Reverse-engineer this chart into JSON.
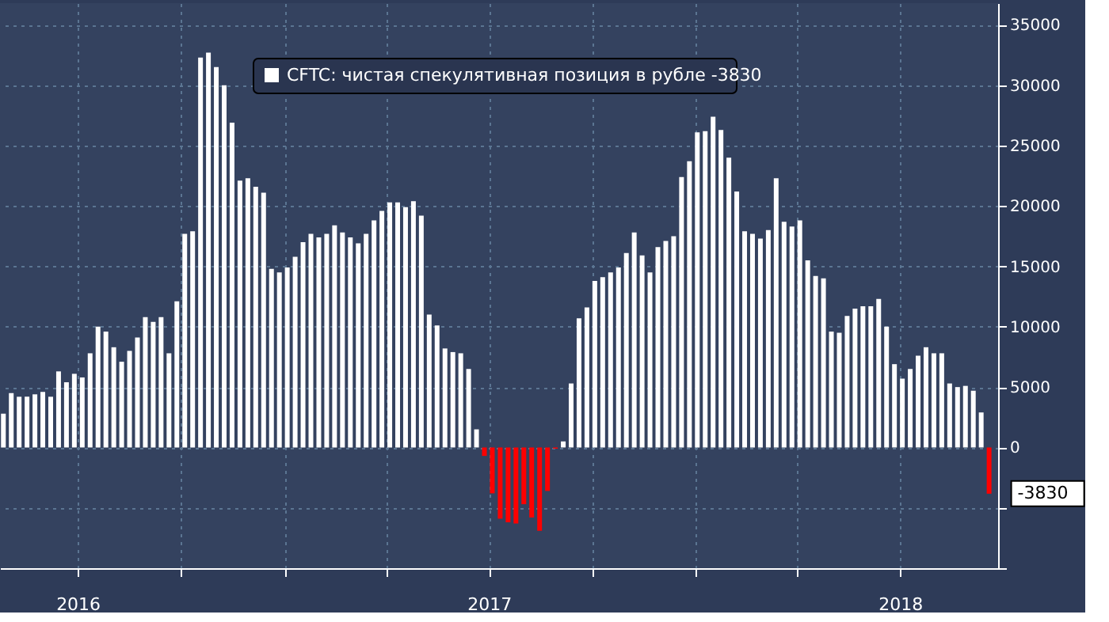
{
  "chart_data": {
    "type": "bar",
    "x": [
      "2016-04-26",
      "2016-05-03",
      "2016-05-10",
      "2016-05-17",
      "2016-05-24",
      "2016-05-31",
      "2016-06-07",
      "2016-06-14",
      "2016-06-21",
      "2016-06-28",
      "2016-07-05",
      "2016-07-12",
      "2016-07-19",
      "2016-07-26",
      "2016-08-02",
      "2016-08-09",
      "2016-08-16",
      "2016-08-23",
      "2016-08-30",
      "2016-09-06",
      "2016-09-13",
      "2016-09-20",
      "2016-09-27",
      "2016-10-04",
      "2016-10-11",
      "2016-10-18",
      "2016-10-25",
      "2016-11-01",
      "2016-11-08",
      "2016-11-15",
      "2016-11-22",
      "2016-11-29",
      "2016-12-06",
      "2016-12-13",
      "2016-12-20",
      "2016-12-27",
      "2017-01-03",
      "2017-01-10",
      "2017-01-17",
      "2017-01-24",
      "2017-01-31",
      "2017-02-07",
      "2017-02-14",
      "2017-02-21",
      "2017-02-28",
      "2017-03-07",
      "2017-03-14",
      "2017-03-21",
      "2017-03-28",
      "2017-04-04",
      "2017-04-11",
      "2017-04-18",
      "2017-04-25",
      "2017-05-02",
      "2017-05-09",
      "2017-05-16",
      "2017-05-23",
      "2017-05-30",
      "2017-06-06",
      "2017-06-13",
      "2017-06-20",
      "2017-06-27",
      "2017-07-04",
      "2017-07-11",
      "2017-07-18",
      "2017-07-25",
      "2017-08-01",
      "2017-08-08",
      "2017-08-15",
      "2017-08-22",
      "2017-08-29",
      "2017-09-05",
      "2017-09-12",
      "2017-09-19",
      "2017-09-26",
      "2017-10-03",
      "2017-10-10",
      "2017-10-17",
      "2017-10-24",
      "2017-10-31",
      "2017-11-07",
      "2017-11-14",
      "2017-11-21",
      "2017-11-28",
      "2017-12-05",
      "2017-12-12",
      "2017-12-19",
      "2017-12-26",
      "2018-01-02",
      "2018-01-09",
      "2018-01-16",
      "2018-01-23",
      "2018-01-30",
      "2018-02-06",
      "2018-02-13",
      "2018-02-20",
      "2018-02-27",
      "2018-03-06",
      "2018-03-13",
      "2018-03-20",
      "2018-03-27",
      "2018-04-03",
      "2018-04-10",
      "2018-04-17",
      "2018-04-24",
      "2018-05-01",
      "2018-05-08",
      "2018-05-15",
      "2018-05-22",
      "2018-05-29",
      "2018-06-05",
      "2018-06-12",
      "2018-06-19",
      "2018-06-26",
      "2018-07-03",
      "2018-07-10",
      "2018-07-17",
      "2018-07-24",
      "2018-07-31",
      "2018-08-07",
      "2018-08-14",
      "2018-08-21",
      "2018-08-28",
      "2018-09-04",
      "2018-09-11",
      "2018-09-18"
    ],
    "series": [
      {
        "name": "CFTC: чистая спекулятивная позиция в рубле  -3830",
        "color": "#ffffff",
        "values": [
          2800,
          4500,
          4200,
          4200,
          4400,
          4600,
          4200,
          6300,
          5400,
          6100,
          5800,
          7800,
          10000,
          9600,
          8300,
          7100,
          8000,
          9100,
          10800,
          10400,
          10800,
          7800,
          12100,
          17700,
          17900,
          32300,
          32700,
          31500,
          30000,
          26900,
          22100,
          22300,
          21600,
          21100,
          14800,
          14500,
          14900,
          15800,
          17000,
          17700,
          17400,
          17700,
          18400,
          17800,
          17400,
          16900,
          17700,
          18800,
          19600,
          20300,
          20300,
          19900,
          20400,
          19200,
          11000,
          10100,
          8200,
          7900,
          7800,
          6500,
          1500,
          -700,
          -3800,
          -5900,
          -6200,
          -6300,
          -4700,
          -5800,
          -6900,
          -3600,
          -100,
          500,
          5300,
          10700,
          11600,
          13800,
          14100,
          14500,
          14900,
          16100,
          17800,
          15900,
          14500,
          16600,
          17100,
          17500,
          22400,
          23700,
          26100,
          26200,
          27400,
          26300,
          24000,
          21200,
          17900,
          17700,
          17300,
          18000,
          22300,
          18700,
          18300,
          18800,
          15500,
          14200,
          14000,
          9600,
          9500,
          10900,
          11500,
          11700,
          11700,
          12300,
          10000,
          6900,
          5700,
          6500,
          7600,
          8300,
          7800,
          7800,
          5300,
          5000,
          5100,
          4700,
          2900,
          -3830
        ],
        "colors": [
          "#ffffff",
          "#ffffff",
          "#ffffff",
          "#ffffff",
          "#ffffff",
          "#ffffff",
          "#ffffff",
          "#ffffff",
          "#ffffff",
          "#ffffff",
          "#ffffff",
          "#ffffff",
          "#ffffff",
          "#ffffff",
          "#ffffff",
          "#ffffff",
          "#ffffff",
          "#ffffff",
          "#ffffff",
          "#ffffff",
          "#ffffff",
          "#ffffff",
          "#ffffff",
          "#ffffff",
          "#ffffff",
          "#ffffff",
          "#ffffff",
          "#ffffff",
          "#ffffff",
          "#ffffff",
          "#ffffff",
          "#ffffff",
          "#ffffff",
          "#ffffff",
          "#ffffff",
          "#ffffff",
          "#ffffff",
          "#ffffff",
          "#ffffff",
          "#ffffff",
          "#ffffff",
          "#ffffff",
          "#ffffff",
          "#ffffff",
          "#ffffff",
          "#ffffff",
          "#ffffff",
          "#ffffff",
          "#ffffff",
          "#ffffff",
          "#ffffff",
          "#ffffff",
          "#ffffff",
          "#ffffff",
          "#ffffff",
          "#ffffff",
          "#ffffff",
          "#ffffff",
          "#ffffff",
          "#ffffff",
          "#ffffff",
          "#ff0000",
          "#ff0000",
          "#ff0000",
          "#ff0000",
          "#ff0000",
          "#ff0000",
          "#ff0000",
          "#ff0000",
          "#ff0000",
          "#ff0000",
          "#ffffff",
          "#ffffff",
          "#ffffff",
          "#ffffff",
          "#ffffff",
          "#ffffff",
          "#ffffff",
          "#ffffff",
          "#ffffff",
          "#ffffff",
          "#ffffff",
          "#ffffff",
          "#ffffff",
          "#ffffff",
          "#ffffff",
          "#ffffff",
          "#ffffff",
          "#ffffff",
          "#ffffff",
          "#ffffff",
          "#ffffff",
          "#ffffff",
          "#ffffff",
          "#ffffff",
          "#ffffff",
          "#ffffff",
          "#ffffff",
          "#ffffff",
          "#ffffff",
          "#ffffff",
          "#ffffff",
          "#ffffff",
          "#ffffff",
          "#ffffff",
          "#ffffff",
          "#ffffff",
          "#ffffff",
          "#ffffff",
          "#ffffff",
          "#ffffff",
          "#ffffff",
          "#ffffff",
          "#ffffff",
          "#ffffff",
          "#ffffff",
          "#ffffff",
          "#ffffff",
          "#ffffff",
          "#ffffff",
          "#ffffff",
          "#ffffff",
          "#ffffff",
          "#ffffff",
          "#ffffff",
          "#ff0000"
        ]
      }
    ],
    "xlim": [
      "2016-04-23",
      "2018-09-26"
    ],
    "xticks": [
      {
        "value": "2016-07-01",
        "label": "2016"
      },
      {
        "value": "2016-10-01",
        "label": null
      },
      {
        "value": "2017-01-01",
        "label": null
      },
      {
        "value": "2017-04-01",
        "label": null
      },
      {
        "value": "2017-07-01",
        "label": "2017"
      },
      {
        "value": "2017-10-01",
        "label": null
      },
      {
        "value": "2018-01-01",
        "label": null
      },
      {
        "value": "2018-04-01",
        "label": null
      },
      {
        "value": "2018-07-01",
        "label": "2018"
      }
    ],
    "ylim": [
      -10000,
      36800
    ],
    "yticks": [
      {
        "value": -10000,
        "label": null
      },
      {
        "value": -5000,
        "label": null
      },
      0,
      5000,
      10000,
      15000,
      20000,
      25000,
      30000,
      35000
    ],
    "annotations": [
      {
        "text": "-3830",
        "x": "2018-09-18",
        "y": -3830
      }
    ],
    "grid": true,
    "legend": "top"
  }
}
